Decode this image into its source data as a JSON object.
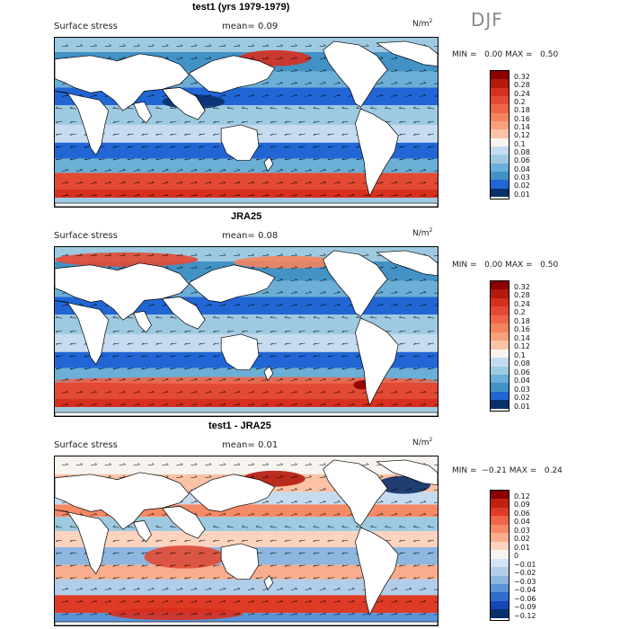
{
  "season_label": "DJF",
  "panels": [
    {
      "id": "test1",
      "title": "test1 (yrs 1979-1979)",
      "variable": "Surface stress",
      "mean_label": "mean=",
      "mean_value": "0.09",
      "units": "N/m",
      "units_exp": "2",
      "min_label": "MIN =",
      "min_value": "0.00",
      "max_label": "MAX =",
      "max_value": "0.50"
    },
    {
      "id": "jra25",
      "title": "JRA25",
      "variable": "Surface stress",
      "mean_label": "mean=",
      "mean_value": "0.08",
      "units": "N/m",
      "units_exp": "2",
      "min_label": "MIN =",
      "min_value": "0.00",
      "max_label": "MAX =",
      "max_value": "0.50"
    },
    {
      "id": "diff",
      "title": "test1 - JRA25",
      "variable": "Surface stress",
      "mean_label": "mean=",
      "mean_value": "0.01",
      "units": "N/m",
      "units_exp": "2",
      "min_label": "MIN =",
      "min_value": "−0.21",
      "max_label": "MAX =",
      "max_value": "0.24"
    }
  ],
  "chart_data": [
    {
      "type": "heatmap",
      "title": "test1 (yrs 1979-1979)",
      "subtitle": "Surface stress",
      "mean": 0.09,
      "min": 0.0,
      "max": 0.5,
      "units": "N/m^2",
      "colorbar_levels": [
        "0.32",
        "0.28",
        "0.24",
        "0.2",
        "0.18",
        "0.16",
        "0.14",
        "0.12",
        "0.1",
        "0.08",
        "0.06",
        "0.04",
        "0.03",
        "0.02",
        "0.01"
      ],
      "colorbar_colors": [
        "#8b0000",
        "#b21a0c",
        "#d7301f",
        "#e34a33",
        "#ef6548",
        "#f4845d",
        "#f8a07c",
        "#fbc3a6",
        "#f7f4ef",
        "#c6dbef",
        "#9ecae1",
        "#6baed6",
        "#4292c6",
        "#2166d4",
        "#08306b"
      ]
    },
    {
      "type": "heatmap",
      "title": "JRA25",
      "subtitle": "Surface stress",
      "mean": 0.08,
      "min": 0.0,
      "max": 0.5,
      "units": "N/m^2",
      "colorbar_levels": [
        "0.32",
        "0.28",
        "0.24",
        "0.2",
        "0.18",
        "0.16",
        "0.14",
        "0.12",
        "0.1",
        "0.08",
        "0.06",
        "0.04",
        "0.03",
        "0.02",
        "0.01"
      ],
      "colorbar_colors": [
        "#8b0000",
        "#b21a0c",
        "#d7301f",
        "#e34a33",
        "#ef6548",
        "#f4845d",
        "#f8a07c",
        "#fbc3a6",
        "#f7f4ef",
        "#c6dbef",
        "#9ecae1",
        "#6baed6",
        "#4292c6",
        "#2166d4",
        "#08306b"
      ]
    },
    {
      "type": "heatmap",
      "title": "test1 - JRA25",
      "subtitle": "Surface stress",
      "mean": 0.01,
      "min": -0.21,
      "max": 0.24,
      "units": "N/m^2",
      "colorbar_levels": [
        "0.12",
        "0.09",
        "0.06",
        "0.04",
        "0.03",
        "0.02",
        "0.01",
        "0",
        "−0.01",
        "−0.02",
        "−0.03",
        "−0.04",
        "−0.06",
        "−0.09",
        "−0.12"
      ],
      "colorbar_colors": [
        "#8b0000",
        "#c0210f",
        "#de3b26",
        "#ef6548",
        "#f58a66",
        "#f9ad8e",
        "#fcd3bf",
        "#f7f4ef",
        "#d4e4f4",
        "#b1cde9",
        "#8db6e0",
        "#5b93d6",
        "#2f6ccc",
        "#1646b8",
        "#08306b"
      ]
    }
  ],
  "colors": {
    "land": "#ffffff",
    "ocean_mid": "#6baed6",
    "ocean_low": "#2166d4",
    "ocean_deep": "#0a3aa8",
    "ocean_high": "#e34a33",
    "ocean_light": "#c6dbef"
  }
}
